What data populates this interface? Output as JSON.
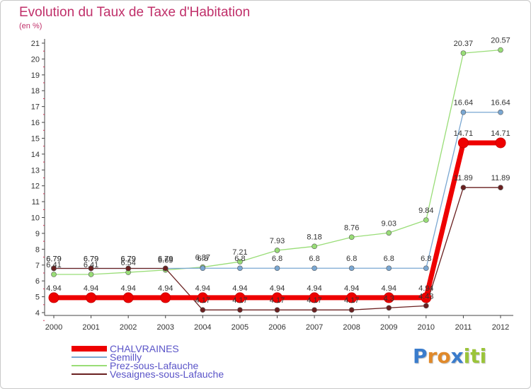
{
  "chart_data": {
    "type": "line",
    "title": "Evolution du Taux de Taxe d'Habitation",
    "ylabel": "(en %)",
    "xlabel": "",
    "ylim": [
      4,
      21
    ],
    "y_ticks": [
      "4",
      "5",
      "6",
      "7",
      "8",
      "9",
      "10",
      "11",
      "12",
      "13",
      "14",
      "15",
      "16",
      "17",
      "18",
      "19",
      "20",
      "21"
    ],
    "x": [
      "2000",
      "2001",
      "2002",
      "2003",
      "2004",
      "2005",
      "2006",
      "2007",
      "2008",
      "2009",
      "2010",
      "2011",
      "2012"
    ],
    "grid": false,
    "legend_position": "bottom-left",
    "series": [
      {
        "name": "CHALVRAINES",
        "color": "#ee0000",
        "values": [
          4.94,
          4.94,
          4.94,
          4.94,
          4.94,
          4.94,
          4.94,
          4.94,
          4.94,
          4.94,
          4.94,
          14.71,
          14.71
        ],
        "labels": [
          "4.94",
          "4.94",
          "4.94",
          "4.94",
          "4.94",
          "4.94",
          "4.94",
          "4.94",
          "4.94",
          "4.94",
          "4.94",
          "14.71",
          "14.71"
        ]
      },
      {
        "name": "Semilly",
        "color": "#7aa7d2",
        "values": [
          6.79,
          6.79,
          6.79,
          6.79,
          6.8,
          6.8,
          6.8,
          6.8,
          6.8,
          6.8,
          6.8,
          16.64,
          16.64
        ],
        "labels": [
          "6.79",
          "6.79",
          "6.79",
          "6.79",
          "6.8",
          "6.8",
          "6.8",
          "6.8",
          "6.8",
          "6.8",
          "6.8",
          "16.64",
          "16.64"
        ]
      },
      {
        "name": "Prez-sous-Lafauche",
        "color": "#99dd77",
        "values": [
          6.41,
          6.41,
          6.54,
          6.69,
          6.87,
          7.21,
          7.93,
          8.18,
          8.76,
          9.03,
          9.84,
          20.37,
          20.57
        ],
        "labels": [
          "6.41",
          "6.41",
          "6.54",
          "6.69",
          "6.87",
          "7.21",
          "7.93",
          "8.18",
          "8.76",
          "9.03",
          "9.84",
          "20.37",
          "20.57"
        ]
      },
      {
        "name": "Vesaignes-sous-Lafauche",
        "color": "#6a2020",
        "values": [
          6.79,
          6.79,
          6.79,
          6.79,
          4.17,
          4.17,
          4.17,
          4.17,
          4.17,
          4.3,
          4.43,
          11.89,
          11.89
        ],
        "labels": [
          "6.79",
          "6.79",
          "6.79",
          "6.79",
          "4.17",
          "4.17",
          "4.17",
          "4.17",
          "4.17",
          "4.3",
          "4.43",
          "11.89",
          "11.89"
        ]
      }
    ]
  },
  "logo": {
    "letters": [
      "P",
      "r",
      "o",
      "x",
      "i",
      "t",
      "i"
    ],
    "colors": [
      "#3a7ccc",
      "#e0892a",
      "#e0892a",
      "#3a7ccc",
      "#9bc43a",
      "#9bc43a",
      "#9bc43a"
    ]
  }
}
